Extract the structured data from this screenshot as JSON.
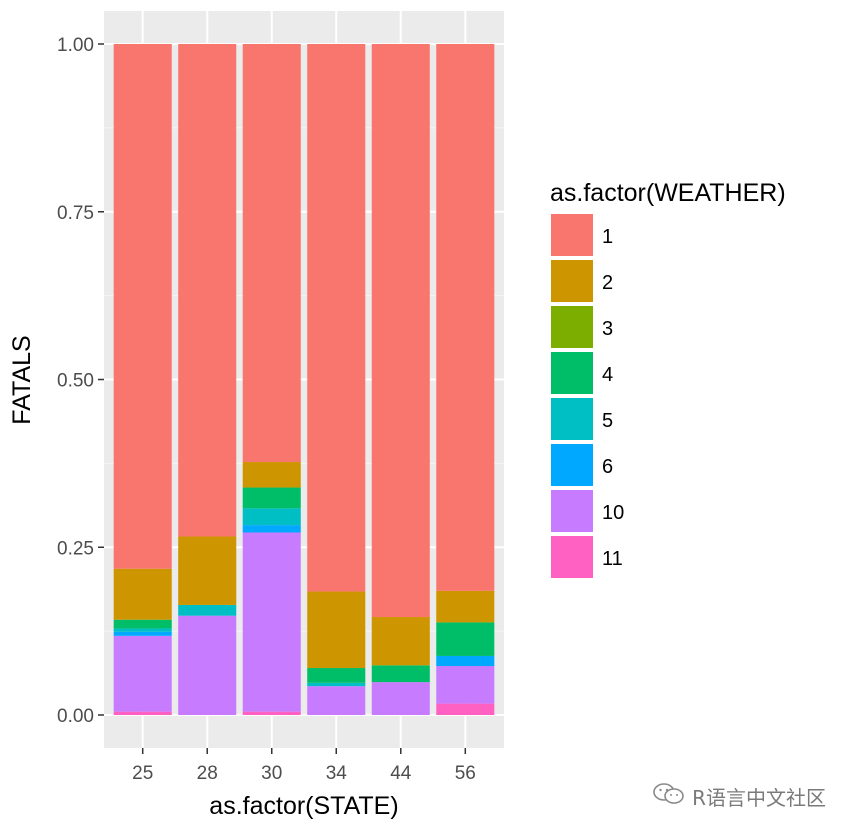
{
  "chart_data": {
    "type": "bar",
    "stacked": true,
    "xlabel": "as.factor(STATE)",
    "ylabel": "FATALS",
    "ylim": [
      0,
      1
    ],
    "yticks": [
      "0.00",
      "0.25",
      "0.50",
      "0.75",
      "1.00"
    ],
    "categories": [
      "25",
      "28",
      "30",
      "34",
      "44",
      "56"
    ],
    "legend_title": "as.factor(WEATHER)",
    "legend_position": "right",
    "grid": true,
    "series": [
      {
        "name": "11",
        "color": "#FF61C3",
        "values": [
          0.005,
          0.0,
          0.005,
          0.0,
          0.0,
          0.017
        ]
      },
      {
        "name": "10",
        "color": "#C77CFF",
        "values": [
          0.113,
          0.148,
          0.267,
          0.043,
          0.049,
          0.056
        ]
      },
      {
        "name": "6",
        "color": "#00A9FF",
        "values": [
          0.006,
          0.0,
          0.011,
          0.0,
          0.0,
          0.015
        ]
      },
      {
        "name": "5",
        "color": "#00BFC4",
        "values": [
          0.005,
          0.016,
          0.025,
          0.005,
          0.0,
          0.0
        ]
      },
      {
        "name": "4",
        "color": "#00BE67",
        "values": [
          0.013,
          0.0,
          0.031,
          0.022,
          0.025,
          0.05
        ]
      },
      {
        "name": "3",
        "color": "#7CAE00",
        "values": [
          0.0,
          0.0,
          0.0,
          0.0,
          0.0,
          0.0
        ]
      },
      {
        "name": "2",
        "color": "#CD9600",
        "values": [
          0.076,
          0.102,
          0.038,
          0.114,
          0.072,
          0.047
        ]
      },
      {
        "name": "1",
        "color": "#F8766D",
        "values": [
          0.782,
          0.734,
          0.623,
          0.816,
          0.854,
          0.815
        ]
      }
    ],
    "legend_order": [
      "1",
      "2",
      "3",
      "4",
      "5",
      "6",
      "10",
      "11"
    ]
  },
  "watermark": {
    "text": "R语言中文社区",
    "icon": "wechat-icon"
  }
}
